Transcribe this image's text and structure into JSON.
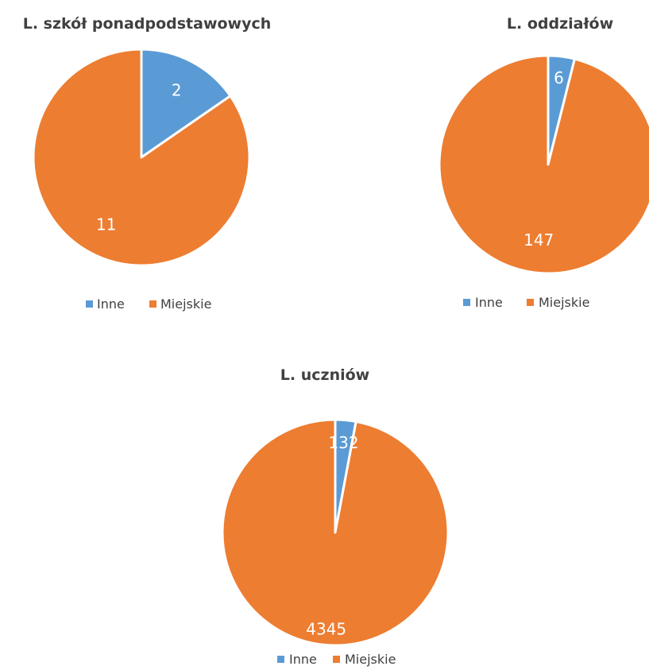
{
  "chart_data": [
    {
      "type": "pie",
      "title": "L. szkół ponadpodstawowych",
      "categories": [
        "Inne",
        "Miejskie"
      ],
      "values": [
        2,
        11
      ],
      "colors": [
        "#5B9BD5",
        "#ED7D31"
      ],
      "legend": "bottom"
    },
    {
      "type": "pie",
      "title": "L. oddziałów",
      "categories": [
        "Inne",
        "Miejskie"
      ],
      "values": [
        6,
        147
      ],
      "colors": [
        "#5B9BD5",
        "#ED7D31"
      ],
      "legend": "bottom"
    },
    {
      "type": "pie",
      "title": "L. uczniów",
      "categories": [
        "Inne",
        "Miejskie"
      ],
      "values": [
        132,
        4345
      ],
      "colors": [
        "#5B9BD5",
        "#ED7D31"
      ],
      "legend": "bottom"
    }
  ]
}
